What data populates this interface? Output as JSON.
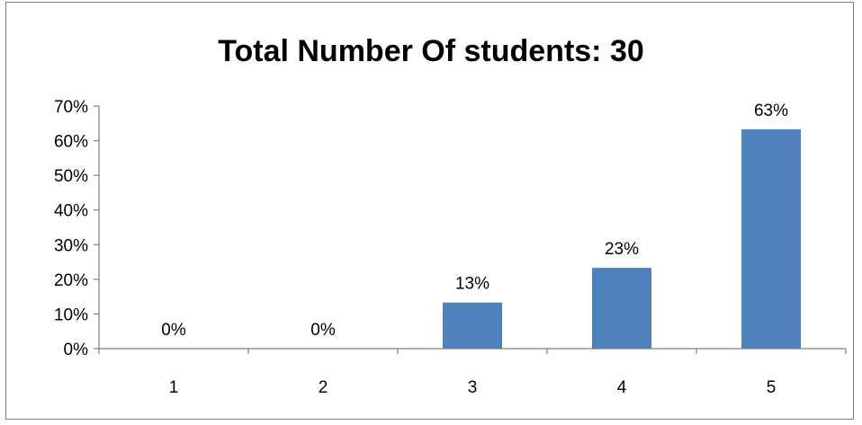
{
  "chart_data": {
    "type": "bar",
    "title": "Total Number Of students: 30",
    "categories": [
      "1",
      "2",
      "3",
      "4",
      "5"
    ],
    "values": [
      0,
      0,
      13.3,
      23.3,
      63.3
    ],
    "data_labels": [
      "0%",
      "0%",
      "13%",
      "23%",
      "63%"
    ],
    "ylim": [
      0,
      70
    ],
    "y_ticks": [
      "0%",
      "10%",
      "20%",
      "30%",
      "40%",
      "50%",
      "60%",
      "70%"
    ],
    "xlabel": "",
    "ylabel": "",
    "grid": false,
    "legend": "none",
    "colors": {
      "bar": "#4f81bd",
      "axis": "#7f7f7f"
    }
  }
}
